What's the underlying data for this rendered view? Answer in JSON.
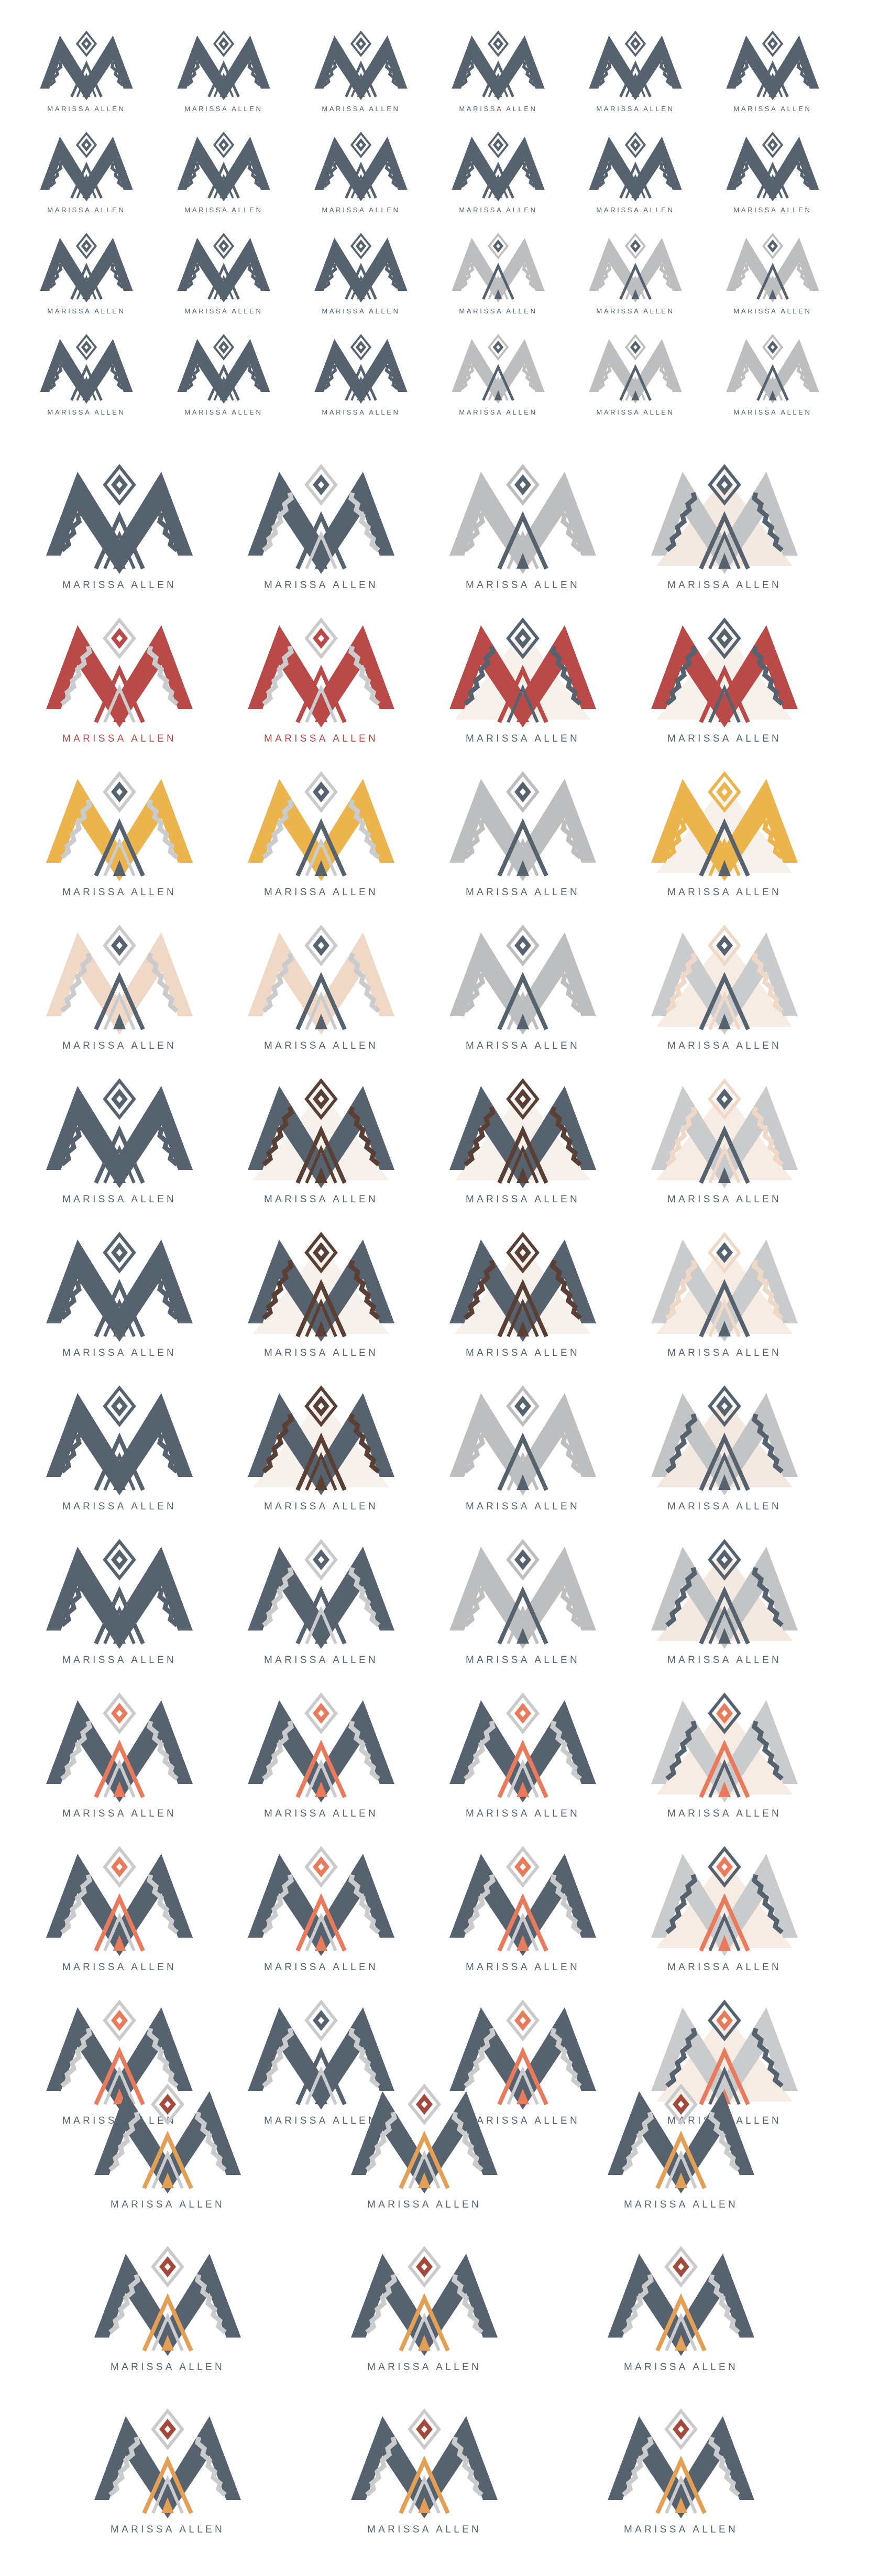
{
  "brand_name": "MARISSA ALLEN",
  "palettes": {
    "slate": {
      "outer": "#56636f",
      "zig": "#56636f",
      "accent": "#56636f",
      "gem": "#56636f",
      "bg": "none",
      "text": "#56636f"
    },
    "slate2": {
      "outer": "#56636f",
      "zig": "#c9cbcc",
      "accent": "#56636f",
      "gem": "#56636f",
      "bg": "none",
      "text": "#56636f"
    },
    "grey": {
      "outer": "#bdbec0",
      "zig": "#bdbec0",
      "accent": "#56636f",
      "gem": "#56636f",
      "bg": "none",
      "text": "#56636f"
    },
    "grey2": {
      "outer": "#c3c4c6",
      "zig": "#56636f",
      "accent": "#56636f",
      "gem": "#56636f",
      "bg": "#f3e9e1",
      "text": "#56636f"
    },
    "red": {
      "outer": "#b94a48",
      "zig": "#c9cbcc",
      "accent": "#b94a48",
      "gem": "#b94a48",
      "bg": "none",
      "text": "#b94a48"
    },
    "red2": {
      "outer": "#b94a48",
      "zig": "#56636f",
      "accent": "#b94a48",
      "gem": "#56636f",
      "bg": "#f7f1ec",
      "text": "#56636f"
    },
    "yellow": {
      "outer": "#ebb44c",
      "zig": "#c9cbcc",
      "accent": "#56636f",
      "gem": "#56636f",
      "bg": "none",
      "text": "#56636f"
    },
    "yellow2": {
      "outer": "#ebb44c",
      "zig": "#ebb44c",
      "accent": "#56636f",
      "gem": "#ebb44c",
      "bg": "#f7f1ec",
      "text": "#56636f"
    },
    "beige": {
      "outer": "#efd9c6",
      "zig": "#c9cbcc",
      "accent": "#56636f",
      "gem": "#56636f",
      "bg": "none",
      "text": "#56636f"
    },
    "beige2": {
      "outer": "#c9cbcc",
      "zig": "#efd9c6",
      "accent": "#56636f",
      "gem": "#56636f",
      "bg": "#f7ece3",
      "text": "#56636f"
    },
    "brown": {
      "outer": "#56636f",
      "zig": "#5a3f35",
      "accent": "#5a3f35",
      "gem": "#5a3f35",
      "bg": "#f7f1ec",
      "text": "#56636f"
    },
    "orange": {
      "outer": "#56636f",
      "zig": "#c9cbcc",
      "accent": "#e97a5b",
      "gem": "#e97a5b",
      "bg": "none",
      "text": "#56636f"
    },
    "orange2": {
      "outer": "#c9cbcc",
      "zig": "#56636f",
      "accent": "#e97a5b",
      "gem": "#e97a5b",
      "bg": "#f7ece3",
      "text": "#56636f"
    },
    "multi": {
      "outer": "#56636f",
      "zig": "#c9cbcc",
      "accent": "#e3a054",
      "gem": "#a44a3c",
      "bg": "none",
      "text": "#56636f"
    }
  },
  "sections": [
    {
      "id": "small",
      "cols": 6,
      "items": [
        "slate",
        "slate",
        "slate",
        "slate",
        "slate",
        "slate",
        "slate",
        "slate",
        "slate",
        "slate",
        "slate",
        "slate",
        "slate",
        "slate",
        "slate",
        "grey",
        "grey",
        "grey",
        "slate",
        "slate",
        "slate",
        "grey",
        "grey",
        "grey"
      ]
    },
    {
      "id": "medium",
      "cols": 4,
      "items": [
        "slate",
        "slate2",
        "grey",
        "grey2",
        "red",
        "red",
        "red2",
        "red2",
        "yellow",
        "yellow",
        "grey",
        "yellow2",
        "beige",
        "beige",
        "grey",
        "beige2",
        "slate",
        "brown",
        "brown",
        "beige2",
        "slate",
        "brown",
        "brown",
        "beige2",
        "slate",
        "brown",
        "grey",
        "grey2",
        "slate",
        "slate2",
        "grey",
        "grey2",
        "orange",
        "orange",
        "orange",
        "orange2",
        "orange",
        "orange",
        "orange",
        "orange2",
        "orange",
        "slate2",
        "orange",
        "orange2"
      ]
    },
    {
      "id": "large",
      "cols": 3,
      "items": [
        "multi",
        "multi",
        "multi",
        "multi",
        "multi",
        "multi",
        "multi",
        "multi",
        "multi"
      ]
    }
  ]
}
